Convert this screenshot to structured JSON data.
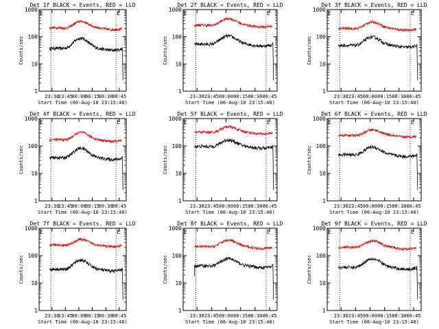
{
  "chart_data": [
    {
      "type": "line",
      "title": "Det 1f BLACK = Events, RED = LLD",
      "xlabel": "Start Time (06-Aug-10 23:15:40)",
      "ylabel": "Counts/sec",
      "yscale": "log",
      "ylim": [
        1,
        1000
      ],
      "yticks": [
        "1",
        "10",
        "100",
        "1000"
      ],
      "xticks": [
        "23:30",
        "23:45",
        "00:00",
        "00:15",
        "00:30",
        "00:45"
      ],
      "xlim_hours": [
        23.26,
        24.88
      ],
      "markers": [
        "E",
        "E"
      ],
      "marker_hours": [
        23.48,
        24.69
      ],
      "series": [
        {
          "color": "#000000",
          "base": 35,
          "peak": 90,
          "edge": "drop-end"
        },
        {
          "color": "#dd0000",
          "base": 200,
          "peak": 380,
          "edge": "none"
        }
      ]
    },
    {
      "type": "line",
      "title": "Det 2f BLACK = Events, RED = LLD",
      "xlabel": "Start Time (06-Aug-10 23:15:40)",
      "ylabel": "Counts/sec",
      "yscale": "log",
      "ylim": [
        1,
        1000
      ],
      "yticks": [
        "1",
        "10",
        "100",
        "1000"
      ],
      "xticks": [
        "23:30",
        "23:45",
        "00:00",
        "00:15",
        "00:30",
        "00:45"
      ],
      "xlim_hours": [
        23.26,
        24.88
      ],
      "markers": [
        "E",
        "E"
      ],
      "marker_hours": [
        23.48,
        24.69
      ],
      "series": [
        {
          "color": "#000000",
          "base": 50,
          "peak": 110,
          "edge": "drop-end"
        },
        {
          "color": "#dd0000",
          "base": 250,
          "peak": 480,
          "edge": "none"
        }
      ]
    },
    {
      "type": "line",
      "title": "Det 3f BLACK = Events, RED = LLD",
      "xlabel": "Start Time (06-Aug-10 23:15:40)",
      "ylabel": "Counts/sec",
      "yscale": "log",
      "ylim": [
        1,
        1000
      ],
      "yticks": [
        "1",
        "10",
        "100",
        "1000"
      ],
      "xticks": [
        "23:30",
        "23:45",
        "00:00",
        "00:15",
        "00:30",
        "00:45"
      ],
      "xlim_hours": [
        23.26,
        24.88
      ],
      "markers": [
        "E",
        "E"
      ],
      "marker_hours": [
        23.48,
        24.69
      ],
      "series": [
        {
          "color": "#000000",
          "base": 45,
          "peak": 100,
          "edge": "drop-end"
        },
        {
          "color": "#dd0000",
          "base": 190,
          "peak": 360,
          "edge": "none"
        }
      ]
    },
    {
      "type": "line",
      "title": "Det 4f BLACK = Events, RED = LLD",
      "xlabel": "Start Time (06-Aug-10 23:15:40)",
      "ylabel": "Counts/sec",
      "yscale": "log",
      "ylim": [
        1,
        1000
      ],
      "yticks": [
        "1",
        "10",
        "100",
        "1000"
      ],
      "xticks": [
        "23:30",
        "23:45",
        "00:00",
        "00:15",
        "00:30",
        "00:45"
      ],
      "xlim_hours": [
        23.26,
        24.88
      ],
      "markers": [
        "E",
        "E"
      ],
      "marker_hours": [
        23.48,
        24.69
      ],
      "series": [
        {
          "color": "#000000",
          "base": 35,
          "peak": 85,
          "edge": "drop-end"
        },
        {
          "color": "#dd0000",
          "base": 160,
          "peak": 320,
          "edge": "none"
        }
      ]
    },
    {
      "type": "line",
      "title": "Det 5f BLACK = Events, RED = LLD",
      "xlabel": "Start Time (06-Aug-10 23:15:40)",
      "ylabel": "Counts/sec",
      "yscale": "log",
      "ylim": [
        1,
        1000
      ],
      "yticks": [
        "1",
        "10",
        "100",
        "1000"
      ],
      "xticks": [
        "23:30",
        "23:45",
        "00:00",
        "00:15",
        "00:30",
        "00:45"
      ],
      "xlim_hours": [
        23.26,
        24.88
      ],
      "markers": [
        "E",
        "E"
      ],
      "marker_hours": [
        23.48,
        24.69
      ],
      "series": [
        {
          "color": "#000000",
          "base": 90,
          "peak": 170,
          "edge": "drop-end"
        },
        {
          "color": "#dd0000",
          "base": 300,
          "peak": 520,
          "edge": "none"
        }
      ]
    },
    {
      "type": "line",
      "title": "Det 6f BLACK = Events, RED = LLD",
      "xlabel": "Start Time (06-Aug-10 23:15:40)",
      "ylabel": "Counts/sec",
      "yscale": "log",
      "ylim": [
        1,
        1000
      ],
      "yticks": [
        "1",
        "10",
        "100",
        "1000"
      ],
      "xticks": [
        "23:30",
        "23:45",
        "00:00",
        "00:15",
        "00:30",
        "00:45"
      ],
      "xlim_hours": [
        23.26,
        24.88
      ],
      "markers": [
        "E",
        "E"
      ],
      "marker_hours": [
        23.48,
        24.69
      ],
      "series": [
        {
          "color": "#000000",
          "base": 45,
          "peak": 95,
          "edge": "drop-end"
        },
        {
          "color": "#dd0000",
          "base": 230,
          "peak": 400,
          "edge": "none"
        }
      ]
    },
    {
      "type": "line",
      "title": "Det 7f BLACK = Events, RED = LLD",
      "xlabel": "Start Time (06-Aug-10 23:15:40)",
      "ylabel": "Counts/sec",
      "yscale": "log",
      "ylim": [
        1,
        1000
      ],
      "yticks": [
        "1",
        "10",
        "100",
        "1000"
      ],
      "xticks": [
        "23:30",
        "23:45",
        "00:00",
        "00:15",
        "00:30",
        "00:45"
      ],
      "xlim_hours": [
        23.26,
        24.88
      ],
      "markers": [
        "E",
        "E"
      ],
      "marker_hours": [
        23.48,
        24.69
      ],
      "series": [
        {
          "color": "#000000",
          "base": 30,
          "peak": 70,
          "edge": "drop-end"
        },
        {
          "color": "#dd0000",
          "base": 230,
          "peak": 400,
          "edge": "none"
        }
      ]
    },
    {
      "type": "line",
      "title": "Det 8f BLACK = Events, RED = LLD",
      "xlabel": "Start Time (06-Aug-10 23:15:40)",
      "ylabel": "Counts/sec",
      "yscale": "log",
      "ylim": [
        1,
        1000
      ],
      "yticks": [
        "1",
        "10",
        "100",
        "1000"
      ],
      "xticks": [
        "23:30",
        "23:45",
        "00:00",
        "00:15",
        "00:30",
        "00:45"
      ],
      "xlim_hours": [
        23.26,
        24.88
      ],
      "markers": [
        "E",
        "E"
      ],
      "marker_hours": [
        23.48,
        24.69
      ],
      "series": [
        {
          "color": "#000000",
          "base": 40,
          "peak": 80,
          "edge": "both"
        },
        {
          "color": "#dd0000",
          "base": 200,
          "peak": 380,
          "edge": "none"
        }
      ]
    },
    {
      "type": "line",
      "title": "Det 9f BLACK = Events, RED = LLD",
      "xlabel": "Start Time (06-Aug-10 23:15:40)",
      "ylabel": "Counts/sec",
      "yscale": "log",
      "ylim": [
        1,
        1000
      ],
      "yticks": [
        "1",
        "10",
        "100",
        "1000"
      ],
      "xticks": [
        "23:30",
        "23:45",
        "00:00",
        "00:15",
        "00:30",
        "00:45"
      ],
      "xlim_hours": [
        23.26,
        24.88
      ],
      "markers": [
        "E",
        "E"
      ],
      "marker_hours": [
        23.48,
        24.69
      ],
      "series": [
        {
          "color": "#000000",
          "base": 35,
          "peak": 80,
          "edge": "drop-end"
        },
        {
          "color": "#dd0000",
          "base": 190,
          "peak": 360,
          "edge": "none"
        }
      ]
    }
  ]
}
